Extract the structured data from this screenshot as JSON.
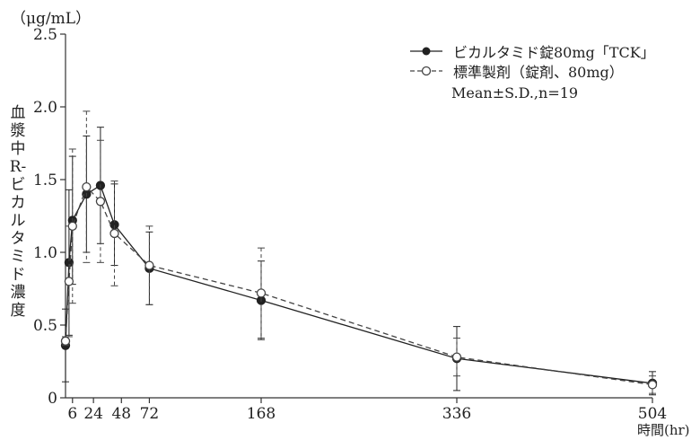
{
  "chart_data": {
    "type": "line",
    "unit_label": "（μg/mL）",
    "ylabel": "血漿中R-ビカルタミド濃度",
    "xlabel": "時間(hr)",
    "ylim": [
      0,
      2.5
    ],
    "xlim": [
      0,
      504
    ],
    "y_ticks": [
      0,
      0.5,
      1.0,
      1.5,
      2.0,
      2.5
    ],
    "y_tick_labels": [
      "0",
      "0.5",
      "1.0",
      "1.5",
      "2.0",
      "2.5"
    ],
    "x_ticks": [
      6,
      24,
      48,
      72,
      168,
      336,
      504
    ],
    "x_tick_labels": [
      "6",
      "24",
      "48",
      "72",
      "168",
      "336",
      "504"
    ],
    "grid": false,
    "legend_position": "top-right",
    "annotation": "Mean±S.D.,n=19",
    "series": [
      {
        "name": "ビカルタミド錠80mg「TCK」",
        "marker": "filled-circle",
        "line_style": "solid",
        "color": "#222222",
        "x": [
          0,
          3,
          6,
          18,
          30,
          42,
          72,
          168,
          336,
          504
        ],
        "y": [
          0.36,
          0.93,
          1.22,
          1.4,
          1.46,
          1.19,
          0.89,
          0.67,
          0.27,
          0.1
        ],
        "sd": [
          0.25,
          0.5,
          0.44,
          0.4,
          0.4,
          0.28,
          0.25,
          0.27,
          0.22,
          0.08
        ]
      },
      {
        "name": "標準製剤（錠剤、80mg）",
        "marker": "open-circle",
        "line_style": "dashed",
        "color": "#444444",
        "x": [
          0,
          3,
          6,
          18,
          30,
          42,
          72,
          168,
          336,
          504
        ],
        "y": [
          0.39,
          0.8,
          1.18,
          1.45,
          1.35,
          1.13,
          0.91,
          0.72,
          0.28,
          0.09
        ],
        "sd": [
          0.03,
          0.38,
          0.53,
          0.52,
          0.42,
          0.36,
          0.27,
          0.31,
          0.13,
          0.06
        ]
      }
    ]
  }
}
